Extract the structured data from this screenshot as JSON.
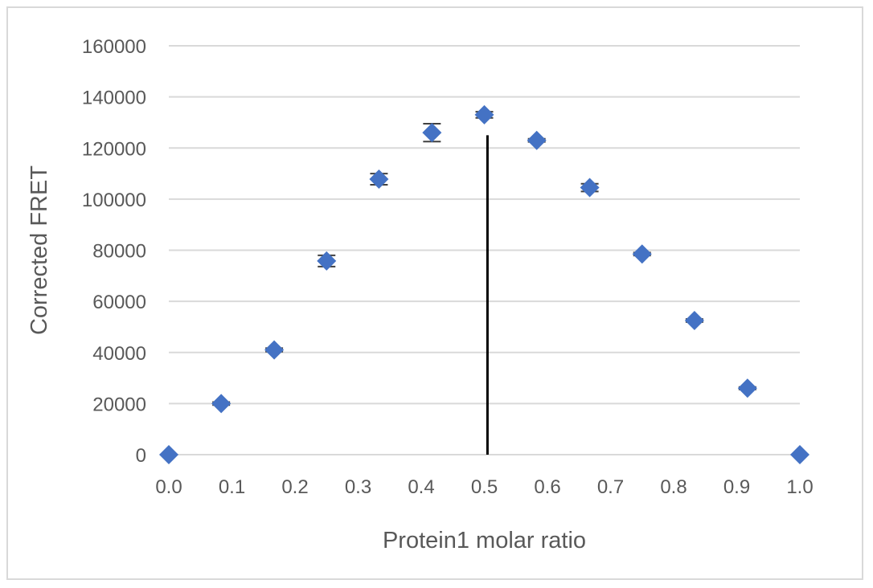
{
  "chart_data": {
    "type": "scatter",
    "title": "",
    "xlabel": "Protein1 molar ratio",
    "ylabel": "Corrected FRET",
    "xlim": [
      0,
      1.0
    ],
    "ylim": [
      0,
      160000
    ],
    "x_ticks": [
      "0.0",
      "0.1",
      "0.2",
      "0.3",
      "0.4",
      "0.5",
      "0.6",
      "0.7",
      "0.8",
      "0.9",
      "1.0"
    ],
    "y_ticks": [
      "0",
      "20000",
      "40000",
      "60000",
      "80000",
      "100000",
      "120000",
      "140000",
      "160000"
    ],
    "grid": "horizontal",
    "legend": "none",
    "marker": "diamond",
    "marker_color": "#4472c4",
    "errorbar_color": "#404040",
    "series": [
      {
        "points": [
          {
            "x": 0.0,
            "y": 0,
            "err": 0
          },
          {
            "x": 0.083,
            "y": 20000,
            "err": 600
          },
          {
            "x": 0.167,
            "y": 41000,
            "err": 700
          },
          {
            "x": 0.25,
            "y": 75800,
            "err": 2200
          },
          {
            "x": 0.333,
            "y": 107800,
            "err": 2200
          },
          {
            "x": 0.417,
            "y": 126000,
            "err": 3500
          },
          {
            "x": 0.5,
            "y": 133000,
            "err": 1200
          },
          {
            "x": 0.583,
            "y": 123000,
            "err": 600
          },
          {
            "x": 0.667,
            "y": 104500,
            "err": 1500
          },
          {
            "x": 0.75,
            "y": 78500,
            "err": 600
          },
          {
            "x": 0.833,
            "y": 52500,
            "err": 600
          },
          {
            "x": 0.917,
            "y": 26000,
            "err": 500
          },
          {
            "x": 1.0,
            "y": 0,
            "err": 0
          }
        ]
      }
    ],
    "reference_line": {
      "x": 0.505,
      "y_from": 0,
      "y_to": 125000,
      "color": "#000000"
    }
  }
}
